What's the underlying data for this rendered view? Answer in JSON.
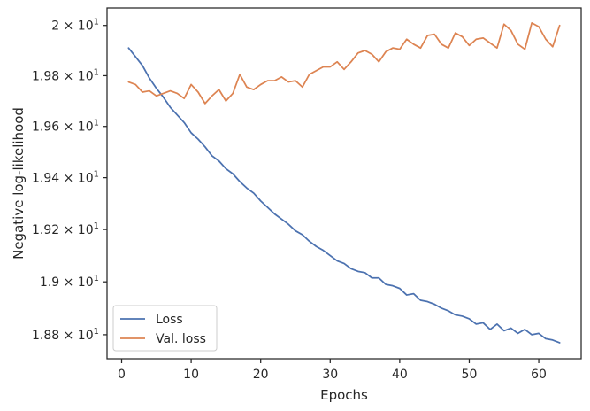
{
  "chart_data": {
    "type": "line",
    "title": "",
    "xlabel": "Epochs",
    "ylabel": "Negative log-likelihood",
    "xlim": [
      -2.1,
      66.1
    ],
    "ylim": [
      18.71,
      20.07
    ],
    "yscale": "log",
    "grid": false,
    "legend_position": "lower-left",
    "x_ticks": [
      0,
      10,
      20,
      30,
      40,
      50,
      60
    ],
    "x_tick_labels": [
      "0",
      "10",
      "20",
      "30",
      "40",
      "50",
      "60"
    ],
    "y_ticks": [
      18.8,
      19.0,
      19.2,
      19.4,
      19.6,
      19.8,
      20.0
    ],
    "y_tick_labels": [
      {
        "mantissa": "1.88",
        "sup": "1"
      },
      {
        "mantissa": "1.9",
        "sup": "1"
      },
      {
        "mantissa": "1.92",
        "sup": "1"
      },
      {
        "mantissa": "1.94",
        "sup": "1"
      },
      {
        "mantissa": "1.96",
        "sup": "1"
      },
      {
        "mantissa": "1.98",
        "sup": "1"
      },
      {
        "mantissa": "2",
        "sup": "1"
      }
    ],
    "x": [
      1,
      2,
      3,
      4,
      5,
      6,
      7,
      8,
      9,
      10,
      11,
      12,
      13,
      14,
      15,
      16,
      17,
      18,
      19,
      20,
      21,
      22,
      23,
      24,
      25,
      26,
      27,
      28,
      29,
      30,
      31,
      32,
      33,
      34,
      35,
      36,
      37,
      38,
      39,
      40,
      41,
      42,
      43,
      44,
      45,
      46,
      47,
      48,
      49,
      50,
      51,
      52,
      53,
      54,
      55,
      56,
      57,
      58,
      59,
      60,
      61,
      62,
      63
    ],
    "series": [
      {
        "name": "Loss",
        "color": "#4c72b0",
        "values": [
          19.91,
          19.875,
          19.84,
          19.79,
          19.75,
          19.715,
          19.675,
          19.645,
          19.615,
          19.575,
          19.55,
          19.52,
          19.485,
          19.465,
          19.435,
          19.415,
          19.385,
          19.36,
          19.34,
          19.31,
          19.285,
          19.26,
          19.24,
          19.22,
          19.195,
          19.18,
          19.155,
          19.135,
          19.12,
          19.1,
          19.08,
          19.07,
          19.05,
          19.04,
          19.035,
          19.015,
          19.015,
          18.99,
          18.985,
          18.975,
          18.95,
          18.955,
          18.93,
          18.925,
          18.915,
          18.9,
          18.89,
          18.875,
          18.87,
          18.86,
          18.84,
          18.845,
          18.82,
          18.84,
          18.815,
          18.825,
          18.805,
          18.82,
          18.8,
          18.805,
          18.785,
          18.78,
          18.77
        ]
      },
      {
        "name": "Val. loss",
        "color": "#dd8452",
        "values": [
          19.775,
          19.765,
          19.735,
          19.74,
          19.72,
          19.73,
          19.74,
          19.73,
          19.71,
          19.765,
          19.735,
          19.69,
          19.72,
          19.745,
          19.7,
          19.73,
          19.805,
          19.755,
          19.745,
          19.765,
          19.78,
          19.78,
          19.795,
          19.775,
          19.78,
          19.755,
          19.805,
          19.82,
          19.835,
          19.835,
          19.855,
          19.825,
          19.855,
          19.89,
          19.9,
          19.885,
          19.855,
          19.895,
          19.91,
          19.905,
          19.945,
          19.925,
          19.91,
          19.96,
          19.965,
          19.925,
          19.91,
          19.97,
          19.955,
          19.92,
          19.945,
          19.95,
          19.93,
          19.91,
          20.005,
          19.98,
          19.925,
          19.905,
          20.01,
          19.995,
          19.945,
          19.915,
          20.0
        ]
      }
    ]
  }
}
